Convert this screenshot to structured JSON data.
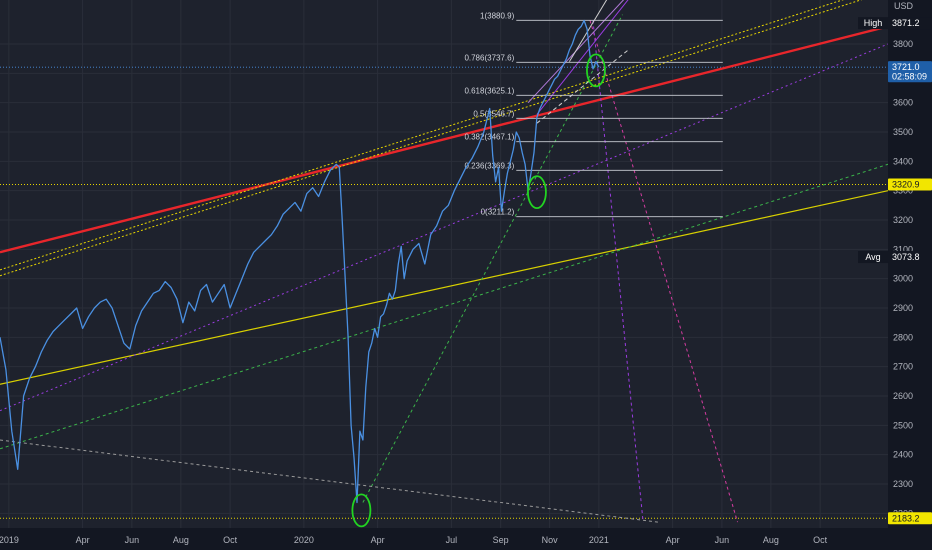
{
  "chart_data": {
    "type": "line",
    "currency": "USD",
    "ylim": [
      2150,
      3950
    ],
    "y_ticks": [
      2200,
      2300,
      2400,
      2500,
      2600,
      2700,
      2800,
      2900,
      3000,
      3100,
      3200,
      3300,
      3400,
      3500,
      3600,
      3700,
      3800
    ],
    "x_ticks": [
      {
        "label": "2019",
        "t": 0.0
      },
      {
        "label": "Apr",
        "t": 0.25
      },
      {
        "label": "Jun",
        "t": 0.417
      },
      {
        "label": "Aug",
        "t": 0.583
      },
      {
        "label": "Oct",
        "t": 0.75
      },
      {
        "label": "2020",
        "t": 1.0
      },
      {
        "label": "Apr",
        "t": 1.25
      },
      {
        "label": "Jul",
        "t": 1.5
      },
      {
        "label": "Sep",
        "t": 1.667
      },
      {
        "label": "Nov",
        "t": 1.833
      },
      {
        "label": "2021",
        "t": 2.0
      },
      {
        "label": "Apr",
        "t": 2.25
      },
      {
        "label": "Jun",
        "t": 2.417
      },
      {
        "label": "Aug",
        "t": 2.583
      },
      {
        "label": "Oct",
        "t": 2.75
      }
    ],
    "xlim": [
      -0.03,
      2.98
    ],
    "grid": true,
    "series": [
      {
        "color": "#4a90e2",
        "points": [
          [
            -0.03,
            2800
          ],
          [
            -0.01,
            2690
          ],
          [
            0.01,
            2480
          ],
          [
            0.03,
            2350
          ],
          [
            0.05,
            2600
          ],
          [
            0.07,
            2660
          ],
          [
            0.09,
            2700
          ],
          [
            0.11,
            2750
          ],
          [
            0.13,
            2790
          ],
          [
            0.15,
            2820
          ],
          [
            0.17,
            2840
          ],
          [
            0.19,
            2860
          ],
          [
            0.21,
            2880
          ],
          [
            0.23,
            2900
          ],
          [
            0.25,
            2830
          ],
          [
            0.27,
            2870
          ],
          [
            0.29,
            2900
          ],
          [
            0.31,
            2920
          ],
          [
            0.33,
            2930
          ],
          [
            0.35,
            2900
          ],
          [
            0.37,
            2840
          ],
          [
            0.39,
            2780
          ],
          [
            0.41,
            2760
          ],
          [
            0.43,
            2840
          ],
          [
            0.45,
            2890
          ],
          [
            0.47,
            2920
          ],
          [
            0.49,
            2950
          ],
          [
            0.51,
            2960
          ],
          [
            0.53,
            2990
          ],
          [
            0.55,
            2970
          ],
          [
            0.57,
            2930
          ],
          [
            0.59,
            2850
          ],
          [
            0.61,
            2920
          ],
          [
            0.63,
            2890
          ],
          [
            0.65,
            2960
          ],
          [
            0.67,
            2980
          ],
          [
            0.69,
            2920
          ],
          [
            0.71,
            2950
          ],
          [
            0.73,
            2980
          ],
          [
            0.75,
            2900
          ],
          [
            0.77,
            2950
          ],
          [
            0.79,
            3000
          ],
          [
            0.81,
            3050
          ],
          [
            0.83,
            3090
          ],
          [
            0.85,
            3110
          ],
          [
            0.87,
            3130
          ],
          [
            0.89,
            3150
          ],
          [
            0.91,
            3180
          ],
          [
            0.93,
            3220
          ],
          [
            0.95,
            3240
          ],
          [
            0.97,
            3260
          ],
          [
            0.99,
            3230
          ],
          [
            1.01,
            3290
          ],
          [
            1.03,
            3310
          ],
          [
            1.05,
            3280
          ],
          [
            1.07,
            3330
          ],
          [
            1.09,
            3370
          ],
          [
            1.11,
            3390
          ],
          [
            1.12,
            3380
          ],
          [
            1.13,
            3200
          ],
          [
            1.14,
            3000
          ],
          [
            1.15,
            2800
          ],
          [
            1.16,
            2500
          ],
          [
            1.17,
            2390
          ],
          [
            1.18,
            2237
          ],
          [
            1.19,
            2480
          ],
          [
            1.2,
            2450
          ],
          [
            1.21,
            2630
          ],
          [
            1.22,
            2750
          ],
          [
            1.23,
            2780
          ],
          [
            1.24,
            2830
          ],
          [
            1.25,
            2800
          ],
          [
            1.26,
            2870
          ],
          [
            1.27,
            2880
          ],
          [
            1.28,
            2910
          ],
          [
            1.29,
            2950
          ],
          [
            1.3,
            2930
          ],
          [
            1.31,
            2960
          ],
          [
            1.32,
            3050
          ],
          [
            1.33,
            3110
          ],
          [
            1.34,
            3000
          ],
          [
            1.35,
            3060
          ],
          [
            1.37,
            3100
          ],
          [
            1.39,
            3120
          ],
          [
            1.41,
            3050
          ],
          [
            1.43,
            3150
          ],
          [
            1.45,
            3180
          ],
          [
            1.47,
            3230
          ],
          [
            1.49,
            3250
          ],
          [
            1.51,
            3300
          ],
          [
            1.53,
            3340
          ],
          [
            1.55,
            3380
          ],
          [
            1.57,
            3410
          ],
          [
            1.59,
            3450
          ],
          [
            1.61,
            3500
          ],
          [
            1.63,
            3580
          ],
          [
            1.64,
            3420
          ],
          [
            1.65,
            3330
          ],
          [
            1.66,
            3380
          ],
          [
            1.67,
            3230
          ],
          [
            1.68,
            3300
          ],
          [
            1.69,
            3360
          ],
          [
            1.7,
            3400
          ],
          [
            1.71,
            3440
          ],
          [
            1.72,
            3500
          ],
          [
            1.73,
            3480
          ],
          [
            1.74,
            3430
          ],
          [
            1.75,
            3390
          ],
          [
            1.76,
            3300
          ],
          [
            1.77,
            3360
          ],
          [
            1.78,
            3430
          ],
          [
            1.79,
            3550
          ],
          [
            1.8,
            3580
          ],
          [
            1.81,
            3600
          ],
          [
            1.82,
            3620
          ],
          [
            1.83,
            3640
          ],
          [
            1.84,
            3660
          ],
          [
            1.85,
            3680
          ],
          [
            1.86,
            3690
          ],
          [
            1.87,
            3710
          ],
          [
            1.88,
            3730
          ],
          [
            1.89,
            3750
          ],
          [
            1.9,
            3780
          ],
          [
            1.91,
            3800
          ],
          [
            1.92,
            3830
          ],
          [
            1.93,
            3850
          ],
          [
            1.94,
            3860
          ],
          [
            1.95,
            3880
          ],
          [
            1.96,
            3851
          ],
          [
            1.97,
            3760
          ],
          [
            1.98,
            3715
          ],
          [
            1.99,
            3740
          ],
          [
            2.0,
            3721
          ]
        ]
      }
    ],
    "fib_levels": [
      {
        "label": "1(3880.9)",
        "value": 3880.9
      },
      {
        "label": "0.786(3737.6)",
        "value": 3737.6
      },
      {
        "label": "0.618(3625.1)",
        "value": 3625.1
      },
      {
        "label": "0.5(3546.7)",
        "value": 3546.7
      },
      {
        "label": "0.382(3467.1)",
        "value": 3467.1
      },
      {
        "label": "0.236(3369.3)",
        "value": 3369.3
      },
      {
        "label": "0(3211.2)",
        "value": 3211.2
      }
    ],
    "trend_lines": [
      {
        "color": "#e8262b",
        "width": 2.4,
        "dash": "",
        "points": [
          [
            -0.03,
            3090
          ],
          [
            2.98,
            3860
          ]
        ]
      },
      {
        "color": "#e6d400",
        "width": 1,
        "dash": "2,2",
        "points": [
          [
            -0.03,
            3030
          ],
          [
            2.98,
            4000
          ]
        ]
      },
      {
        "color": "#e6d400",
        "width": 1,
        "dash": "2,2",
        "points": [
          [
            -0.03,
            3010
          ],
          [
            2.98,
            3980
          ]
        ]
      },
      {
        "color": "#d8d000",
        "width": 1.2,
        "dash": "",
        "points": [
          [
            -0.03,
            2640
          ],
          [
            2.98,
            3300
          ]
        ]
      },
      {
        "color": "#9a3ce0",
        "width": 1,
        "dash": "2,3",
        "points": [
          [
            -0.03,
            2550
          ],
          [
            2.98,
            3800
          ]
        ]
      },
      {
        "color": "#3bb34a",
        "width": 1,
        "dash": "3,3",
        "points": [
          [
            -0.03,
            2420
          ],
          [
            2.98,
            3390
          ]
        ]
      },
      {
        "color": "#3bb34a",
        "width": 1,
        "dash": "3,3",
        "points": [
          [
            1.2,
            2237
          ],
          [
            2.08,
            3900
          ]
        ]
      },
      {
        "color": "#9a9a9a",
        "width": 1,
        "dash": "3,3",
        "points": [
          [
            -0.03,
            2450
          ],
          [
            2.2,
            2170
          ]
        ]
      },
      {
        "color": "#d43ca0",
        "width": 1,
        "dash": "3,3",
        "points": [
          [
            1.97,
            3880
          ],
          [
            2.47,
            2170
          ]
        ]
      },
      {
        "color": "#9a3ce0",
        "width": 1,
        "dash": "3,3",
        "points": [
          [
            1.98,
            3880
          ],
          [
            2.15,
            2170
          ]
        ]
      },
      {
        "color": "#cfcfcf",
        "width": 1,
        "dash": "4,3",
        "points": [
          [
            1.79,
            3530
          ],
          [
            2.1,
            3780
          ]
        ]
      },
      {
        "color": "#9a3ce0",
        "width": 1,
        "dash": "",
        "points": [
          [
            1.79,
            3560
          ],
          [
            2.13,
            3990
          ]
        ]
      },
      {
        "color": "#b07ad8",
        "width": 1,
        "dash": "",
        "points": [
          [
            1.76,
            3600
          ],
          [
            2.12,
            3990
          ]
        ]
      },
      {
        "color": "#cfcfcf",
        "width": 1,
        "dash": "",
        "points": [
          [
            1.9,
            3740
          ],
          [
            2.05,
            3990
          ]
        ]
      }
    ],
    "circles": [
      {
        "x": 1.195,
        "y": 2210
      },
      {
        "x": 1.79,
        "y": 3295
      },
      {
        "x": 1.99,
        "y": 3710
      }
    ],
    "price_tags": [
      {
        "label": "High",
        "value": "3871.2",
        "y": 3871.2,
        "bg": "#131722",
        "fg": "#ffffff"
      },
      {
        "label": "",
        "value": "3721.0",
        "y": 3721.0,
        "bg": "#1f5fa8",
        "fg": "#ffffff"
      },
      {
        "label": "",
        "value": "02:58:09",
        "y": 3690,
        "bg": "#1f5fa8",
        "fg": "#ffffff"
      },
      {
        "label": "",
        "value": "3320.9",
        "y": 3320.9,
        "bg": "#f2e600",
        "fg": "#131722"
      },
      {
        "label": "Avg",
        "value": "3073.8",
        "y": 3073.8,
        "bg": "#131722",
        "fg": "#ffffff"
      },
      {
        "label": "",
        "value": "2183.2",
        "y": 2183.2,
        "bg": "#f2e600",
        "fg": "#131722"
      }
    ]
  }
}
